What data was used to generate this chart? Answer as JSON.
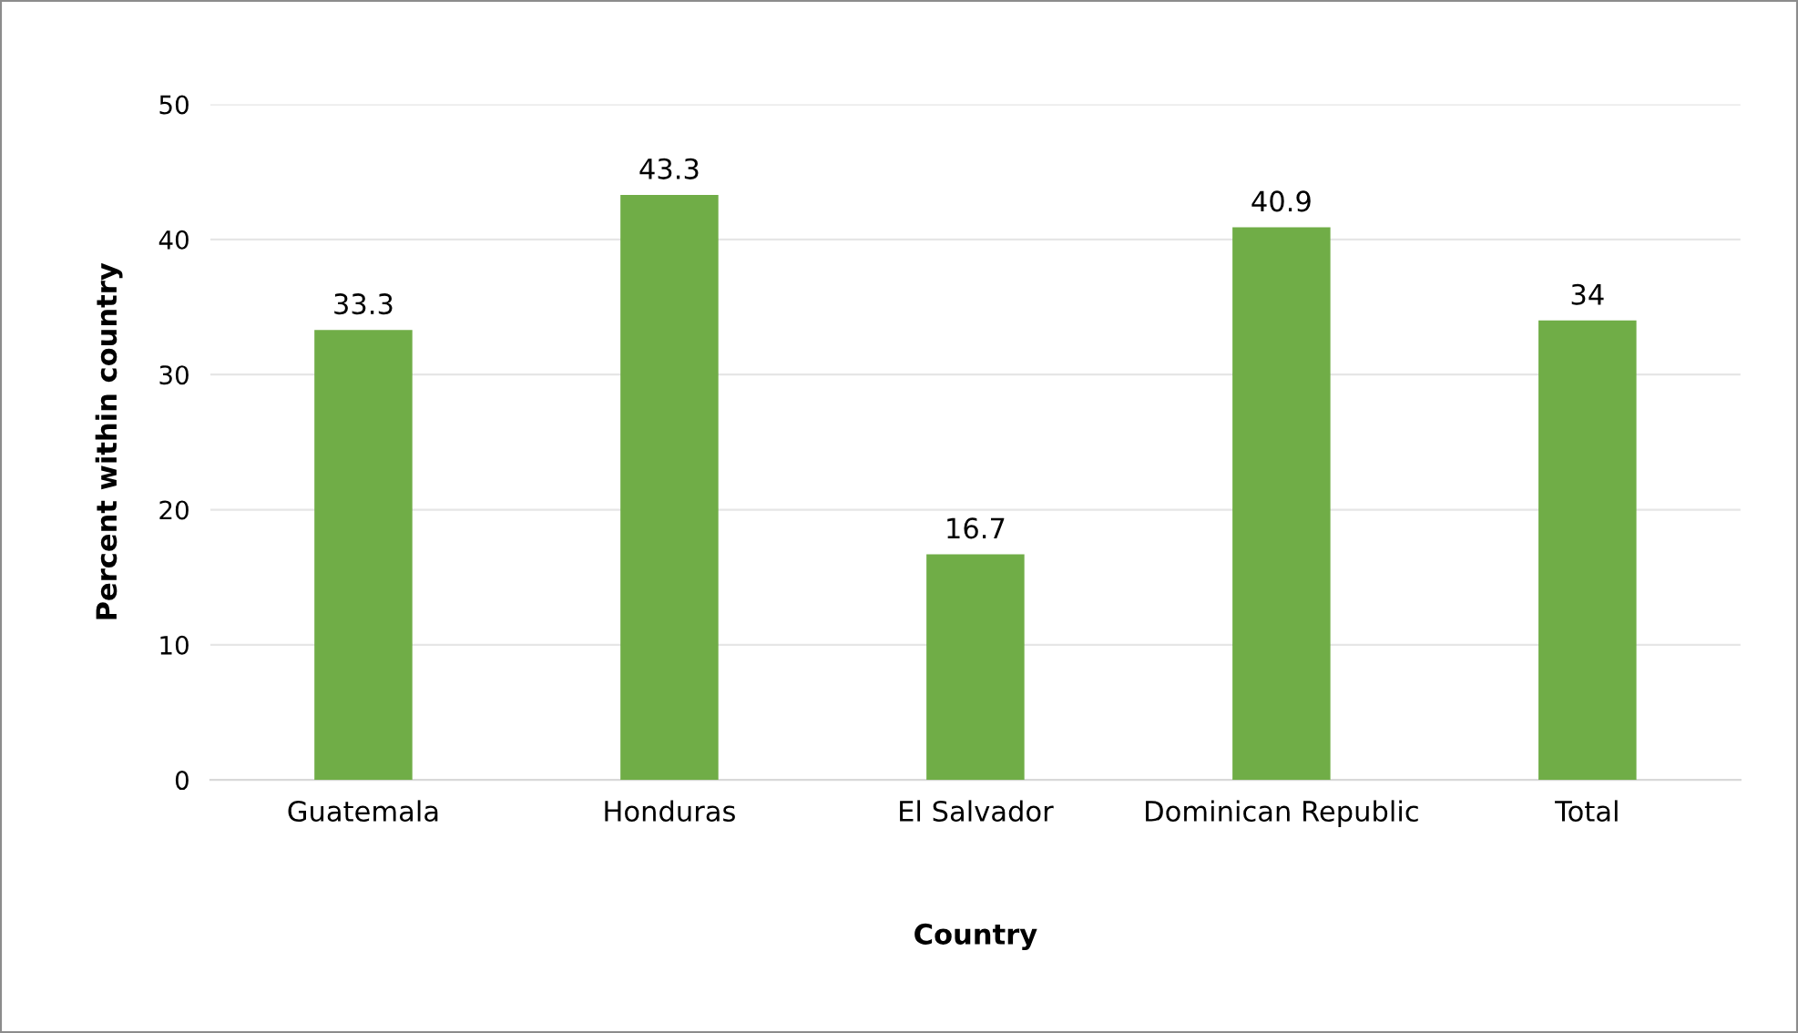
{
  "chart_data": {
    "type": "bar",
    "xlabel": "Country",
    "ylabel": "Percent within country",
    "categories": [
      "Guatemala",
      "Honduras",
      "El Salvador",
      "Dominican Republic",
      "Total"
    ],
    "values": [
      33.3,
      43.3,
      16.7,
      40.9,
      34
    ],
    "color": "#70ad47",
    "ylim": [
      0,
      50
    ],
    "yticks": [
      0,
      10,
      20,
      30,
      40,
      50
    ],
    "grid": "y",
    "data_labels": true
  }
}
